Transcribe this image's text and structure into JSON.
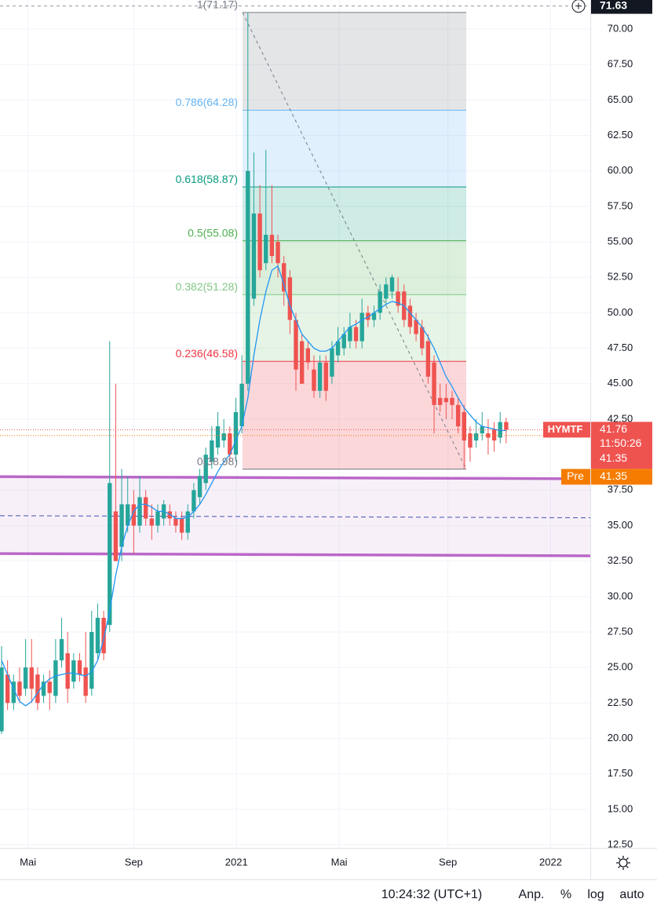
{
  "chart_data": {
    "type": "candlestick",
    "symbol": "HYMTF",
    "up_color": "#26a69a",
    "down_color": "#ef5350",
    "candles": [
      [
        20.5,
        26.5,
        20.3,
        25
      ],
      [
        24.5,
        25.5,
        22,
        22.5
      ],
      [
        22.5,
        24.5,
        22,
        24
      ],
      [
        24,
        25,
        22.5,
        23
      ],
      [
        23.5,
        27,
        23,
        25
      ],
      [
        25,
        27,
        22.5,
        23.5
      ],
      [
        24.5,
        25,
        22,
        22.5
      ],
      [
        23,
        24.5,
        22.5,
        24
      ],
      [
        24,
        24.8,
        22,
        23.2
      ],
      [
        23,
        27,
        22.5,
        25.5
      ],
      [
        25.5,
        28.5,
        25,
        27
      ],
      [
        26,
        27.5,
        22.5,
        23.5
      ],
      [
        24,
        26,
        23.5,
        25.5
      ],
      [
        25.5,
        26,
        24,
        24.5
      ],
      [
        25,
        27.5,
        22.5,
        23
      ],
      [
        23.5,
        29,
        23,
        27.5
      ],
      [
        26,
        29.5,
        25.5,
        28.5
      ],
      [
        28.5,
        29,
        25.5,
        26
      ],
      [
        28,
        48,
        27.5,
        38
      ],
      [
        36,
        45,
        32.5,
        32.5
      ],
      [
        33.5,
        39,
        32.5,
        36.5
      ],
      [
        35,
        38.5,
        34.5,
        36.5
      ],
      [
        36.5,
        37.5,
        33,
        35
      ],
      [
        35,
        38.5,
        34.5,
        37
      ],
      [
        37,
        37.5,
        35,
        35.5
      ],
      [
        35.5,
        36.5,
        34,
        35
      ],
      [
        35,
        36.5,
        34.5,
        36
      ],
      [
        35.5,
        36.8,
        35,
        36.5
      ],
      [
        36,
        36.5,
        35,
        35.5
      ],
      [
        35.5,
        36,
        34.5,
        35
      ],
      [
        35.5,
        36,
        34,
        34.5
      ],
      [
        34.5,
        36.5,
        34,
        36
      ],
      [
        36,
        38,
        35.5,
        37.5
      ],
      [
        37,
        39,
        36.5,
        38.5
      ],
      [
        38,
        40.5,
        37.5,
        40
      ],
      [
        39.5,
        42,
        39,
        41
      ],
      [
        40.5,
        43,
        40,
        42
      ],
      [
        41,
        42.5,
        40.5,
        41.5
      ],
      [
        41.5,
        42,
        39.5,
        40
      ],
      [
        40,
        44,
        39.5,
        43
      ],
      [
        42,
        47,
        41.5,
        45
      ],
      [
        45,
        71.17,
        44.5,
        60
      ],
      [
        51,
        61.3,
        50.5,
        57
      ],
      [
        57,
        59,
        52.5,
        53
      ],
      [
        53.5,
        61.5,
        53,
        55.5
      ],
      [
        55.5,
        59,
        53.5,
        54
      ],
      [
        55,
        55.5,
        52.5,
        53.5
      ],
      [
        53.5,
        54,
        50.5,
        51.5
      ],
      [
        52.5,
        53,
        48.5,
        49.5
      ],
      [
        49.5,
        50,
        44.5,
        46
      ],
      [
        48,
        48.5,
        45,
        45
      ],
      [
        47.5,
        48,
        46,
        46.5
      ],
      [
        46,
        47,
        44,
        44.5
      ],
      [
        44.5,
        47,
        44,
        46.5
      ],
      [
        46.5,
        47,
        43.8,
        44.5
      ],
      [
        45.5,
        48,
        45,
        47.5
      ],
      [
        47,
        49,
        46.5,
        48
      ],
      [
        47.5,
        49,
        47,
        48.5
      ],
      [
        48,
        50,
        47.5,
        49
      ],
      [
        49,
        49.5,
        47.5,
        48
      ],
      [
        48,
        51,
        47.5,
        50
      ],
      [
        50,
        50.5,
        49,
        49.5
      ],
      [
        49.5,
        50.5,
        49,
        50
      ],
      [
        50,
        52,
        49.5,
        51.5
      ],
      [
        51,
        52.5,
        50.5,
        52
      ],
      [
        51.5,
        52.7,
        51,
        52.5
      ],
      [
        51.5,
        52.5,
        50,
        50.5
      ],
      [
        51.5,
        52,
        49,
        49.5
      ],
      [
        50.5,
        51,
        48.5,
        49
      ],
      [
        49.5,
        50,
        48,
        48.5
      ],
      [
        49,
        49.5,
        47,
        47.5
      ],
      [
        48,
        48.5,
        45,
        45.5
      ],
      [
        46.5,
        47,
        41.5,
        43.5
      ],
      [
        44,
        45,
        43,
        43.5
      ],
      [
        44,
        45,
        42.5,
        43.7
      ],
      [
        44,
        44.5,
        42.5,
        43.5
      ],
      [
        43.5,
        44,
        41.5,
        42
      ],
      [
        43,
        43.5,
        39,
        41
      ],
      [
        41.5,
        42,
        39.5,
        40.5
      ],
      [
        41,
        42.5,
        40.5,
        41.5
      ],
      [
        41.5,
        43,
        41,
        42
      ],
      [
        41.5,
        42.5,
        40,
        41.2
      ],
      [
        41.8,
        42.3,
        40.2,
        41
      ],
      [
        41.2,
        43,
        40.8,
        42.3
      ],
      [
        42.3,
        42.6,
        40.8,
        41.76
      ]
    ],
    "ma": {
      "color": "#2196f3",
      "values": [
        25.5,
        24.5,
        23.5,
        22.6,
        22.3,
        22.6,
        23.2,
        23.8,
        24.2,
        24.4,
        24.5,
        24.6,
        24.6,
        24.5,
        24.4,
        24.7,
        25.5,
        27.0,
        29.0,
        31.5,
        33.5,
        35.0,
        36.0,
        36.5,
        36.5,
        36.3,
        36.0,
        36.0,
        35.8,
        35.5,
        35.5,
        35.6,
        36.0,
        36.5,
        37.2,
        38.0,
        38.8,
        39.5,
        40.0,
        41.0,
        42.0,
        44.0,
        47.0,
        49.5,
        51.5,
        53.0,
        53.3,
        52.0,
        50.5,
        49.5,
        48.5,
        48.0,
        47.5,
        47.3,
        47.3,
        47.5,
        48.0,
        48.5,
        49.0,
        49.2,
        49.5,
        49.7,
        50.0,
        50.3,
        50.6,
        50.8,
        50.7,
        50.5,
        50.0,
        49.5,
        49.0,
        48.3,
        47.5,
        46.5,
        45.5,
        44.8,
        44.0,
        43.3,
        42.8,
        42.3,
        42.0,
        41.9,
        41.8,
        41.7,
        41.7
      ]
    },
    "xlim": [
      -0.26,
      98.0
    ],
    "xticks": [
      {
        "value": 4.4,
        "label": "Mai"
      },
      {
        "value": 22,
        "label": "Sep"
      },
      {
        "value": 39.1,
        "label": "2021"
      },
      {
        "value": 56.2,
        "label": "Mai"
      },
      {
        "value": 74.3,
        "label": "Sep"
      },
      {
        "value": 91.4,
        "label": "2022"
      }
    ],
    "ylim": [
      12.28,
      72.05
    ],
    "yticks": [
      {
        "value": 12.5,
        "label": "12.50"
      },
      {
        "value": 15,
        "label": "15.00"
      },
      {
        "value": 17.5,
        "label": "17.50"
      },
      {
        "value": 20,
        "label": "20.00"
      },
      {
        "value": 22.5,
        "label": "22.50"
      },
      {
        "value": 25,
        "label": "25.00"
      },
      {
        "value": 27.5,
        "label": "27.50"
      },
      {
        "value": 30,
        "label": "30.00"
      },
      {
        "value": 32.5,
        "label": "32.50"
      },
      {
        "value": 35,
        "label": "35.00"
      },
      {
        "value": 37.5,
        "label": "37.50"
      },
      {
        "value": 42.5,
        "label": "42.50"
      },
      {
        "value": 45,
        "label": "45.00"
      },
      {
        "value": 47.5,
        "label": "47.50"
      },
      {
        "value": 50,
        "label": "50.00"
      },
      {
        "value": 52.5,
        "label": "52.50"
      },
      {
        "value": 55,
        "label": "55.00"
      },
      {
        "value": 57.5,
        "label": "57.50"
      },
      {
        "value": 60,
        "label": "60.00"
      },
      {
        "value": 62.5,
        "label": "62.50"
      },
      {
        "value": 65,
        "label": "65.00"
      },
      {
        "value": 67.5,
        "label": "67.50"
      },
      {
        "value": 70,
        "label": "70.00"
      }
    ],
    "grid": true,
    "log_scale": false,
    "fib": {
      "levels": [
        {
          "value": 71.17,
          "label": "1(71.17)",
          "color": "#787b86"
        },
        {
          "value": 64.28,
          "label": "0.786(64.28)",
          "color": "#64b5f6"
        },
        {
          "value": 58.87,
          "label": "0.618(58.87)",
          "color": "#089981"
        },
        {
          "value": 55.08,
          "label": "0.5(55.08)",
          "color": "#4caf50"
        },
        {
          "value": 51.28,
          "label": "0.382(51.28)",
          "color": "#81c784"
        },
        {
          "value": 46.58,
          "label": "0.236(46.58)",
          "color": "#f23645"
        },
        {
          "value": 38.98,
          "label": "0(38.98)",
          "color": "#787b86"
        }
      ]
    },
    "zone": {
      "color": "#ba68c8",
      "top": [
        38.45,
        38.3
      ],
      "mid": [
        35.7,
        35.55
      ],
      "bottom": [
        33.03,
        32.87
      ]
    },
    "crosshair": {
      "value": 71.63,
      "label": "71.63"
    },
    "last": {
      "value": 41.76,
      "label": "41.76",
      "countdown": "11:50:26",
      "color": "#ef5350"
    },
    "close": {
      "value": 41.35,
      "label": "41.35"
    },
    "pre": {
      "name": "Pre",
      "value": 41.35,
      "label": "41.35",
      "color": "#f57c00"
    }
  },
  "status_bar": {
    "time": "10:24:32 (UTC+1)",
    "buttons": [
      "Anp.",
      "%",
      "log",
      "auto"
    ]
  }
}
